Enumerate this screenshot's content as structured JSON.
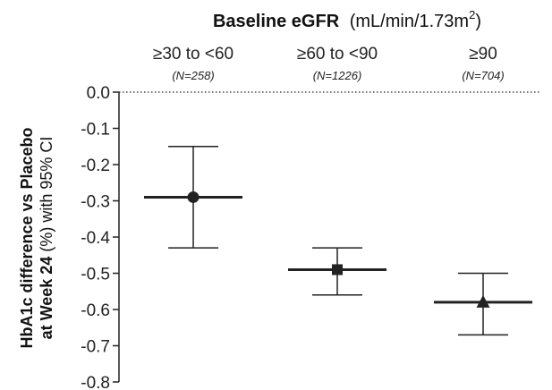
{
  "chart_data": {
    "type": "scatter",
    "title": {
      "bold": "Baseline eGFR",
      "unit_main": "(mL/min/1.73m",
      "unit_sup": "2",
      "unit_close": ")"
    },
    "ylabel": {
      "line1": "HbA1c difference vs Placebo",
      "line2_bold": "at Week 24",
      "line2_rest": " (%) with 95% CI"
    },
    "ylim": [
      -0.8,
      0.0
    ],
    "yticks": [
      "0.0",
      "-0.1",
      "-0.2",
      "-0.3",
      "-0.4",
      "-0.5",
      "-0.6",
      "-0.7",
      "-0.8"
    ],
    "ytick_values": [
      0.0,
      -0.1,
      -0.2,
      -0.3,
      -0.4,
      -0.5,
      -0.6,
      -0.7,
      -0.8
    ],
    "categories": [
      {
        "label": "≥30 to <60",
        "n": "(N=258)",
        "estimate": -0.29,
        "ci_low": -0.43,
        "ci_high": -0.15,
        "marker": "circle"
      },
      {
        "label": "≥60 to <90",
        "n": "(N=1226)",
        "estimate": -0.49,
        "ci_low": -0.56,
        "ci_high": -0.43,
        "marker": "square"
      },
      {
        "label": "≥90",
        "n": "(N=704)",
        "estimate": -0.58,
        "ci_low": -0.67,
        "ci_high": -0.5,
        "marker": "triangle"
      }
    ],
    "grid": false,
    "reference_line": {
      "y": 0.0,
      "style": "dotted"
    },
    "colors": {
      "marker": "#222222",
      "line": "#222222"
    }
  }
}
